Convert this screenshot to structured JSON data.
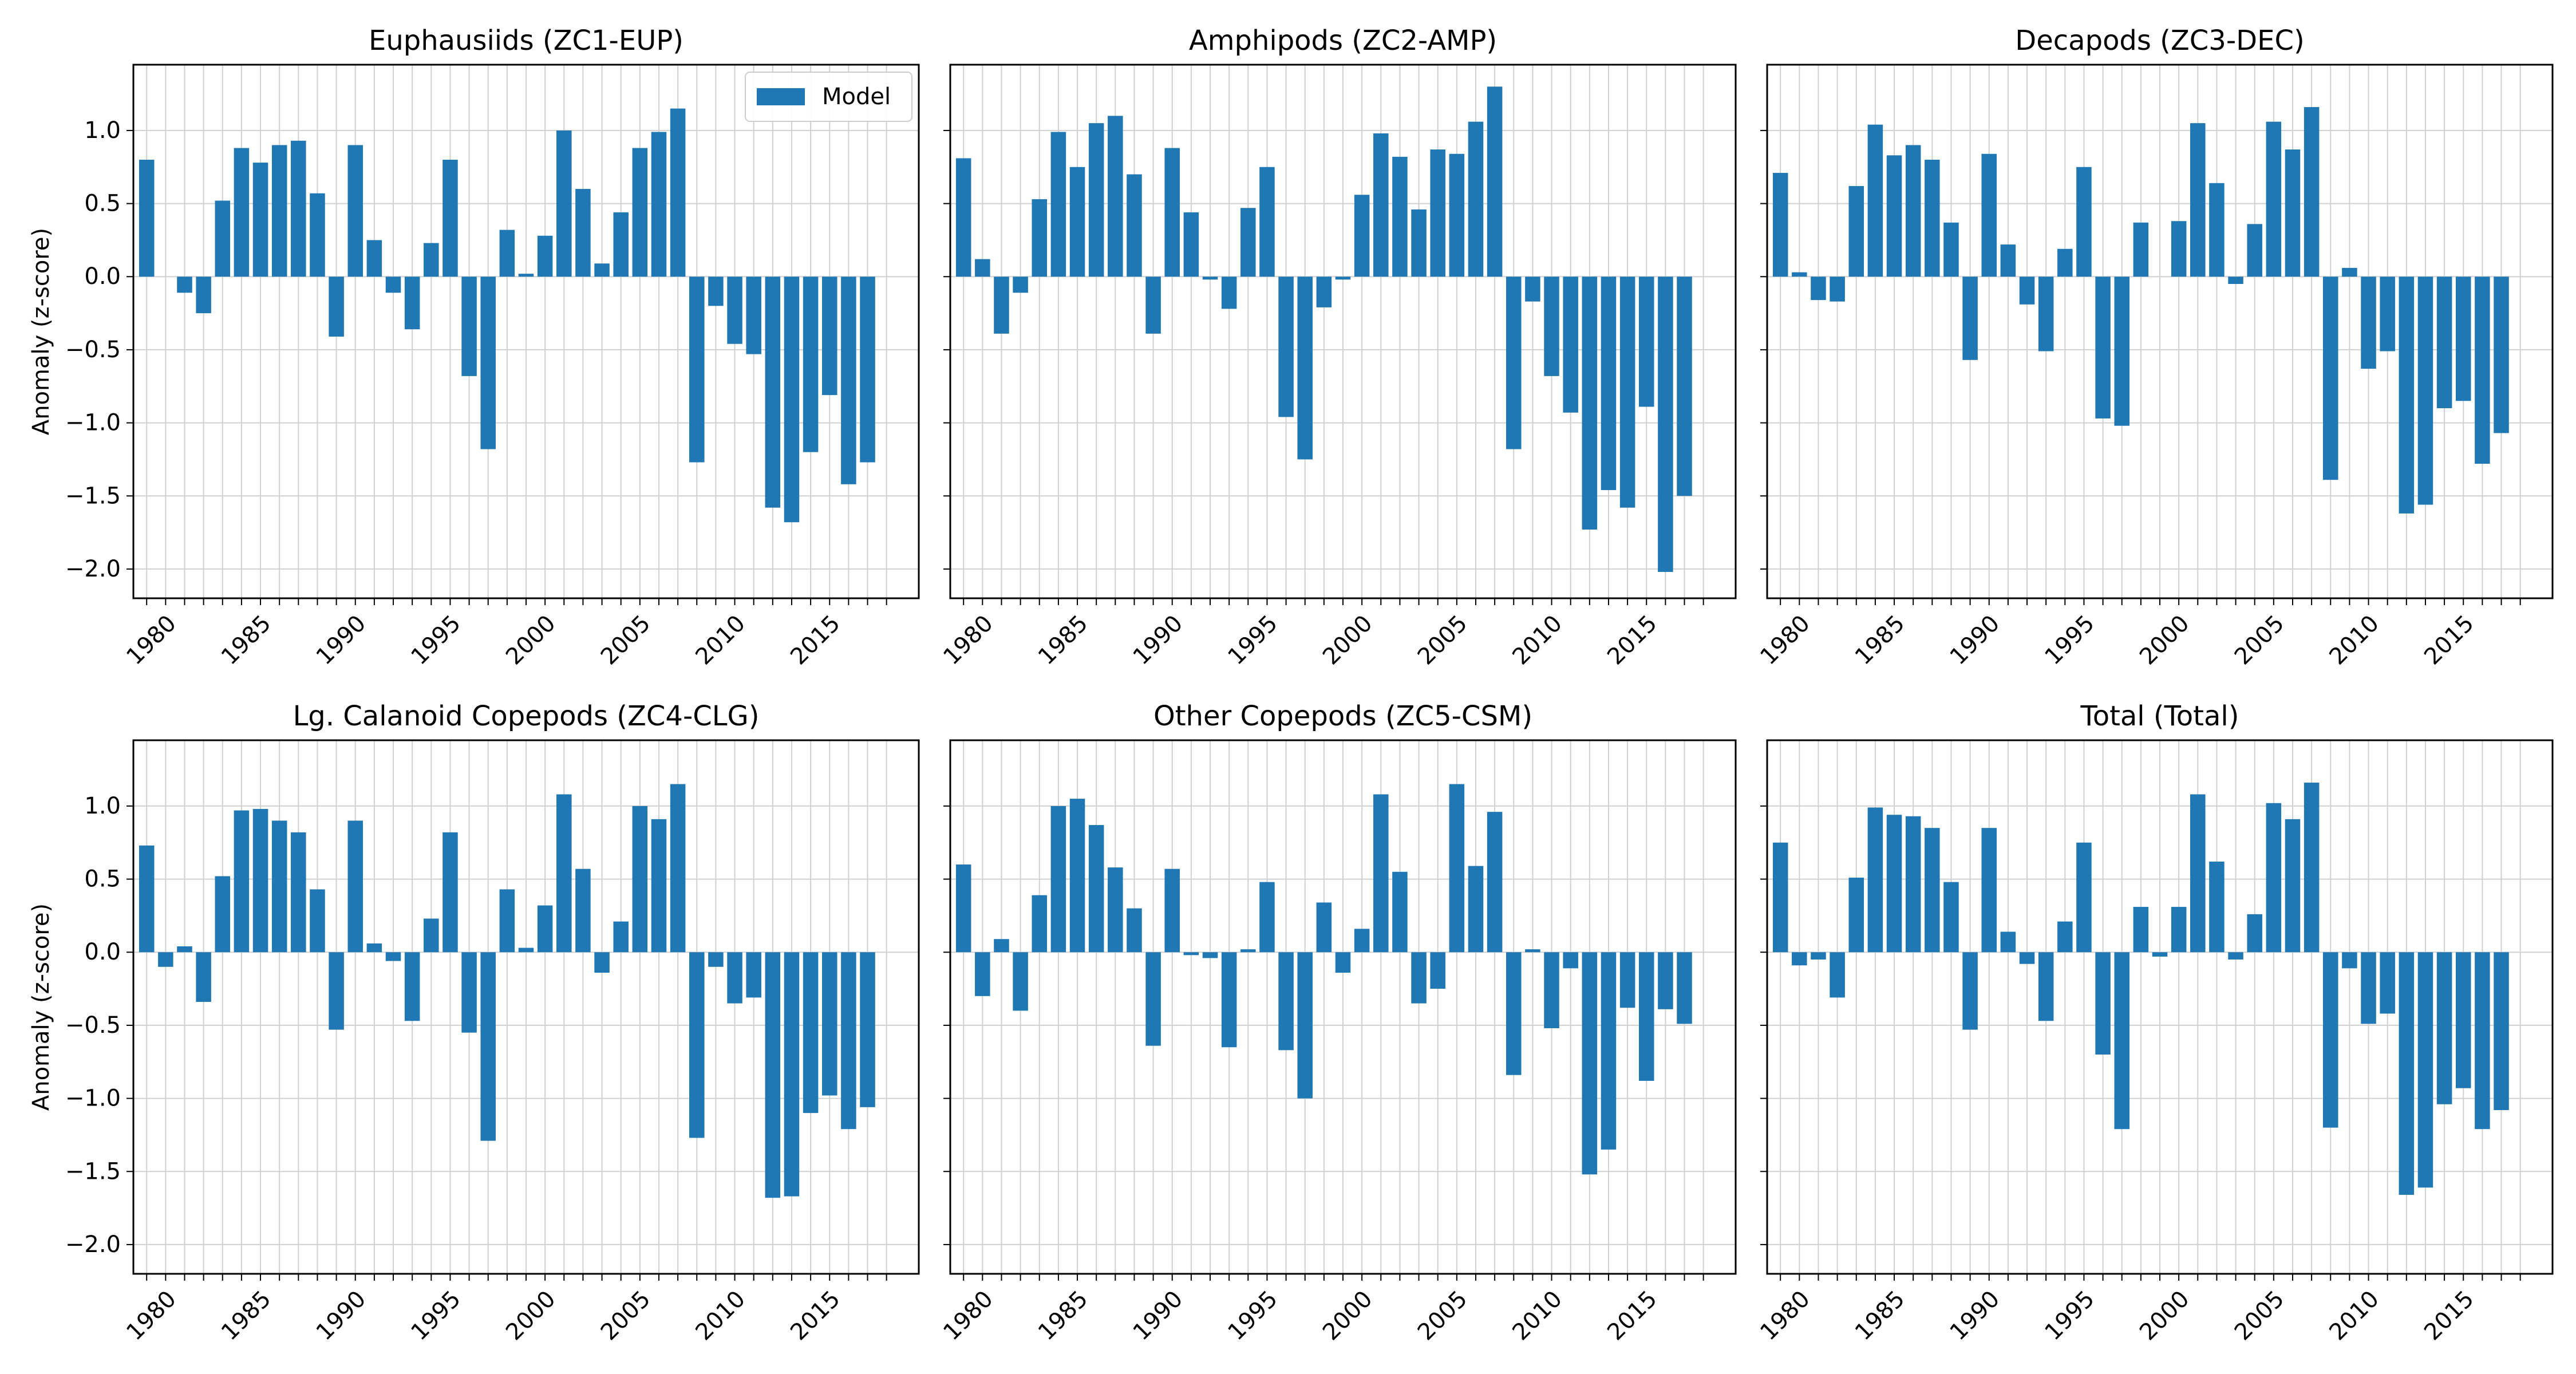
{
  "colors": {
    "bar": "#1f77b4",
    "grid": "#d0d0d0",
    "axis": "#000000"
  },
  "figure": {
    "legend_label": "Model"
  },
  "chart_data": [
    {
      "type": "bar",
      "title": "Euphausiids (ZC1-EUP)",
      "ylabel": "Anomaly (z-score)",
      "xlabel": "",
      "grid": true,
      "legend": {
        "entries": [
          "Model"
        ],
        "placement": "upper right"
      },
      "xlim": [
        1978.3,
        2019.7
      ],
      "ylim": [
        -2.2,
        1.45
      ],
      "x_tick_labels": [
        "1980",
        "1985",
        "1990",
        "1995",
        "2000",
        "2005",
        "2010",
        "2015"
      ],
      "y_tick_labels": [
        "1.0",
        "0.5",
        "0.0",
        "−0.5",
        "−1.0",
        "−1.5",
        "−2.0"
      ],
      "x": [
        1979,
        1980,
        1981,
        1982,
        1983,
        1984,
        1985,
        1986,
        1987,
        1988,
        1989,
        1990,
        1991,
        1992,
        1993,
        1994,
        1995,
        1996,
        1997,
        1998,
        1999,
        2000,
        2001,
        2002,
        2003,
        2004,
        2005,
        2006,
        2007,
        2008,
        2009,
        2010,
        2011,
        2012,
        2013,
        2014,
        2015,
        2016,
        2017,
        2018
      ],
      "series": [
        {
          "name": "Model",
          "values": [
            0.8,
            0.0,
            -0.11,
            -0.25,
            0.52,
            0.88,
            0.78,
            0.9,
            0.93,
            0.57,
            -0.41,
            0.9,
            0.25,
            -0.11,
            -0.36,
            0.23,
            0.8,
            -0.68,
            -1.18,
            0.32,
            0.02,
            0.28,
            1.0,
            0.6,
            0.09,
            0.44,
            0.88,
            0.99,
            1.15,
            -1.27,
            -0.2,
            -0.46,
            -0.53,
            -1.58,
            -1.68,
            -1.2,
            -0.81,
            -1.42,
            -1.27,
            0.0
          ]
        }
      ]
    },
    {
      "type": "bar",
      "title": "Amphipods (ZC2-AMP)",
      "ylabel": "",
      "xlabel": "",
      "grid": true,
      "xlim": [
        1978.3,
        2019.7
      ],
      "ylim": [
        -2.2,
        1.45
      ],
      "x_tick_labels": [
        "1980",
        "1985",
        "1990",
        "1995",
        "2000",
        "2005",
        "2010",
        "2015"
      ],
      "x": [
        1979,
        1980,
        1981,
        1982,
        1983,
        1984,
        1985,
        1986,
        1987,
        1988,
        1989,
        1990,
        1991,
        1992,
        1993,
        1994,
        1995,
        1996,
        1997,
        1998,
        1999,
        2000,
        2001,
        2002,
        2003,
        2004,
        2005,
        2006,
        2007,
        2008,
        2009,
        2010,
        2011,
        2012,
        2013,
        2014,
        2015,
        2016,
        2017,
        2018
      ],
      "series": [
        {
          "name": "Model",
          "values": [
            0.81,
            0.12,
            -0.39,
            -0.11,
            0.53,
            0.99,
            0.75,
            1.05,
            1.1,
            0.7,
            -0.39,
            0.88,
            0.44,
            -0.02,
            -0.22,
            0.47,
            0.75,
            -0.96,
            -1.25,
            -0.21,
            -0.02,
            0.56,
            0.98,
            0.82,
            0.46,
            0.87,
            0.84,
            1.06,
            1.3,
            -1.18,
            -0.17,
            -0.68,
            -0.93,
            -1.73,
            -1.46,
            -1.58,
            -0.89,
            -2.02,
            -1.5,
            0.0
          ]
        }
      ]
    },
    {
      "type": "bar",
      "title": "Decapods (ZC3-DEC)",
      "ylabel": "",
      "xlabel": "",
      "grid": true,
      "xlim": [
        1978.3,
        2019.7
      ],
      "ylim": [
        -2.2,
        1.45
      ],
      "x_tick_labels": [
        "1980",
        "1985",
        "1990",
        "1995",
        "2000",
        "2005",
        "2010",
        "2015"
      ],
      "x": [
        1979,
        1980,
        1981,
        1982,
        1983,
        1984,
        1985,
        1986,
        1987,
        1988,
        1989,
        1990,
        1991,
        1992,
        1993,
        1994,
        1995,
        1996,
        1997,
        1998,
        1999,
        2000,
        2001,
        2002,
        2003,
        2004,
        2005,
        2006,
        2007,
        2008,
        2009,
        2010,
        2011,
        2012,
        2013,
        2014,
        2015,
        2016,
        2017,
        2018
      ],
      "series": [
        {
          "name": "Model",
          "values": [
            0.71,
            0.03,
            -0.16,
            -0.17,
            0.62,
            1.04,
            0.83,
            0.9,
            0.8,
            0.37,
            -0.57,
            0.84,
            0.22,
            -0.19,
            -0.51,
            0.19,
            0.75,
            -0.97,
            -1.02,
            0.37,
            0.0,
            0.38,
            1.05,
            0.64,
            -0.05,
            0.36,
            1.06,
            0.87,
            1.16,
            -1.39,
            0.06,
            -0.63,
            -0.51,
            -1.62,
            -1.56,
            -0.9,
            -0.85,
            -1.28,
            -1.07,
            0.0
          ]
        }
      ]
    },
    {
      "type": "bar",
      "title": "Lg. Calanoid Copepods (ZC4-CLG)",
      "ylabel": "Anomaly (z-score)",
      "xlabel": "",
      "grid": true,
      "xlim": [
        1978.3,
        2019.7
      ],
      "ylim": [
        -2.2,
        1.45
      ],
      "x_tick_labels": [
        "1980",
        "1985",
        "1990",
        "1995",
        "2000",
        "2005",
        "2010",
        "2015"
      ],
      "y_tick_labels": [
        "1.0",
        "0.5",
        "0.0",
        "−0.5",
        "−1.0",
        "−1.5",
        "−2.0"
      ],
      "x": [
        1979,
        1980,
        1981,
        1982,
        1983,
        1984,
        1985,
        1986,
        1987,
        1988,
        1989,
        1990,
        1991,
        1992,
        1993,
        1994,
        1995,
        1996,
        1997,
        1998,
        1999,
        2000,
        2001,
        2002,
        2003,
        2004,
        2005,
        2006,
        2007,
        2008,
        2009,
        2010,
        2011,
        2012,
        2013,
        2014,
        2015,
        2016,
        2017,
        2018
      ],
      "series": [
        {
          "name": "Model",
          "values": [
            0.73,
            -0.1,
            0.04,
            -0.34,
            0.52,
            0.97,
            0.98,
            0.9,
            0.82,
            0.43,
            -0.53,
            0.9,
            0.06,
            -0.06,
            -0.47,
            0.23,
            0.82,
            -0.55,
            -1.29,
            0.43,
            0.03,
            0.32,
            1.08,
            0.57,
            -0.14,
            0.21,
            1.0,
            0.91,
            1.15,
            -1.27,
            -0.1,
            -0.35,
            -0.31,
            -1.68,
            -1.67,
            -1.1,
            -0.98,
            -1.21,
            -1.06,
            0.0
          ]
        }
      ]
    },
    {
      "type": "bar",
      "title": "Other Copepods (ZC5-CSM)",
      "ylabel": "",
      "xlabel": "",
      "grid": true,
      "xlim": [
        1978.3,
        2019.7
      ],
      "ylim": [
        -2.2,
        1.45
      ],
      "x_tick_labels": [
        "1980",
        "1985",
        "1990",
        "1995",
        "2000",
        "2005",
        "2010",
        "2015"
      ],
      "x": [
        1979,
        1980,
        1981,
        1982,
        1983,
        1984,
        1985,
        1986,
        1987,
        1988,
        1989,
        1990,
        1991,
        1992,
        1993,
        1994,
        1995,
        1996,
        1997,
        1998,
        1999,
        2000,
        2001,
        2002,
        2003,
        2004,
        2005,
        2006,
        2007,
        2008,
        2009,
        2010,
        2011,
        2012,
        2013,
        2014,
        2015,
        2016,
        2017,
        2018
      ],
      "series": [
        {
          "name": "Model",
          "values": [
            0.6,
            -0.3,
            0.09,
            -0.4,
            0.39,
            1.0,
            1.05,
            0.87,
            0.58,
            0.3,
            -0.64,
            0.57,
            -0.02,
            -0.04,
            -0.65,
            0.02,
            0.48,
            -0.67,
            -1.0,
            0.34,
            -0.14,
            0.16,
            1.08,
            0.55,
            -0.35,
            -0.25,
            1.15,
            0.59,
            0.96,
            -0.84,
            0.02,
            -0.52,
            -0.11,
            -1.52,
            -1.35,
            -0.38,
            -0.88,
            -0.39,
            -0.49,
            0.0
          ]
        }
      ]
    },
    {
      "type": "bar",
      "title": "Total (Total)",
      "ylabel": "",
      "xlabel": "",
      "grid": true,
      "xlim": [
        1978.3,
        2019.7
      ],
      "ylim": [
        -2.2,
        1.45
      ],
      "x_tick_labels": [
        "1980",
        "1985",
        "1990",
        "1995",
        "2000",
        "2005",
        "2010",
        "2015"
      ],
      "x": [
        1979,
        1980,
        1981,
        1982,
        1983,
        1984,
        1985,
        1986,
        1987,
        1988,
        1989,
        1990,
        1991,
        1992,
        1993,
        1994,
        1995,
        1996,
        1997,
        1998,
        1999,
        2000,
        2001,
        2002,
        2003,
        2004,
        2005,
        2006,
        2007,
        2008,
        2009,
        2010,
        2011,
        2012,
        2013,
        2014,
        2015,
        2016,
        2017,
        2018
      ],
      "series": [
        {
          "name": "Model",
          "values": [
            0.75,
            -0.09,
            -0.05,
            -0.31,
            0.51,
            0.99,
            0.94,
            0.93,
            0.85,
            0.48,
            -0.53,
            0.85,
            0.14,
            -0.08,
            -0.47,
            0.21,
            0.75,
            -0.7,
            -1.21,
            0.31,
            -0.03,
            0.31,
            1.08,
            0.62,
            -0.05,
            0.26,
            1.02,
            0.91,
            1.16,
            -1.2,
            -0.11,
            -0.49,
            -0.42,
            -1.66,
            -1.61,
            -1.04,
            -0.93,
            -1.21,
            -1.08,
            0.0
          ]
        }
      ]
    }
  ]
}
